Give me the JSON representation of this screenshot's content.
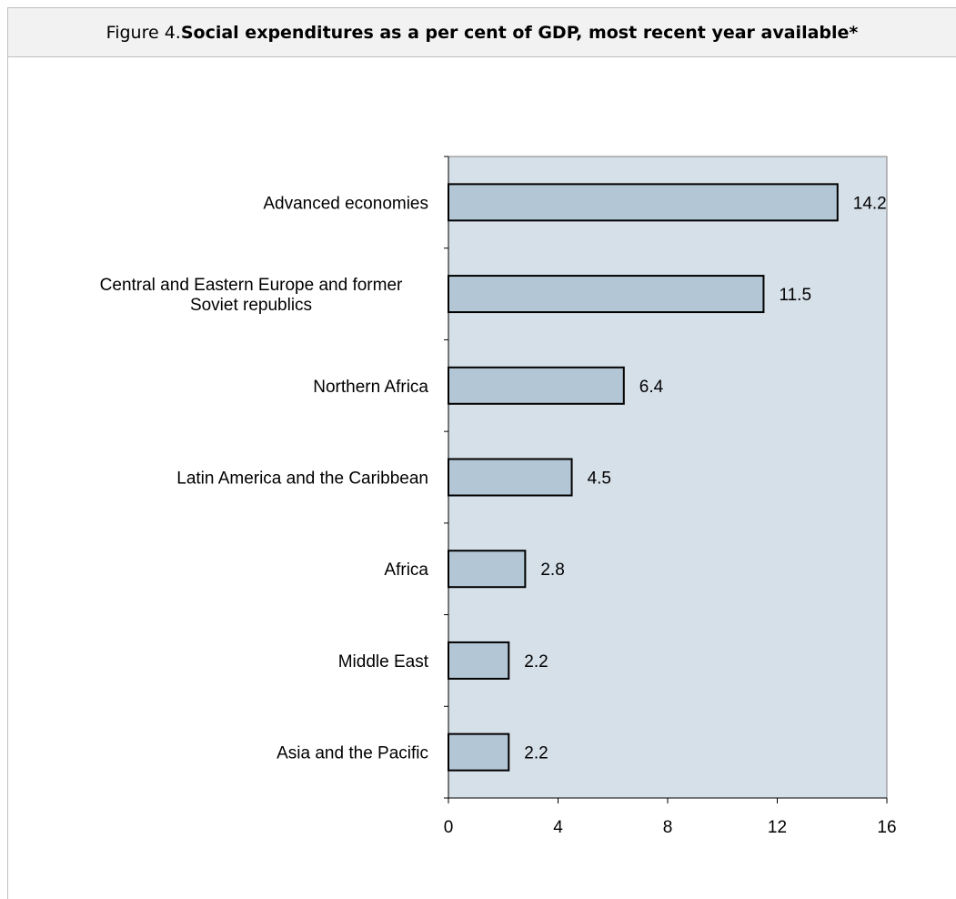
{
  "figure": {
    "label": "Figure 4. ",
    "title": "Social expenditures as a  per cent of GDP, most recent year available*"
  },
  "chart_data": {
    "type": "bar",
    "orientation": "horizontal",
    "categories": [
      [
        "Advanced economies"
      ],
      [
        "Central and Eastern Europe and former",
        "Soviet republics"
      ],
      [
        "Northern Africa"
      ],
      [
        "Latin America and the Caribbean"
      ],
      [
        "Africa"
      ],
      [
        "Middle East"
      ],
      [
        "Asia and the Pacific"
      ]
    ],
    "values": [
      14.2,
      11.5,
      6.4,
      4.5,
      2.8,
      2.2,
      2.2
    ],
    "value_labels": [
      "14.2",
      "11.5",
      "6.4",
      "4.5",
      "2.8",
      "2.2",
      "2.2"
    ],
    "xlim": [
      0,
      16
    ],
    "xticks": [
      0,
      4,
      8,
      12,
      16
    ],
    "xtick_labels": [
      "0",
      "4",
      "8",
      "12",
      "16"
    ],
    "title": "",
    "xlabel": "",
    "ylabel": "",
    "grid": false,
    "colors": {
      "plot_background": "#d6e0e9",
      "bar_fill": "#b3c6d5",
      "bar_stroke": "#000000"
    }
  }
}
